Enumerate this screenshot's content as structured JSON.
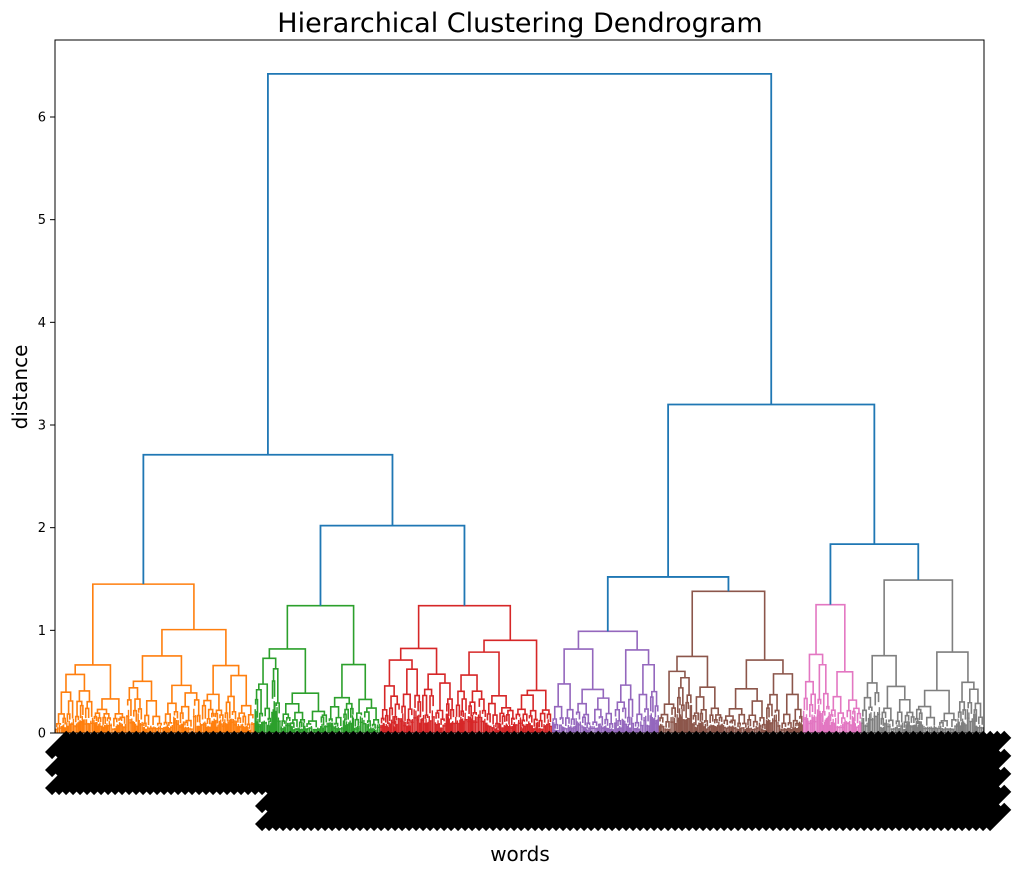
{
  "chart_data": {
    "type": "dendrogram",
    "title": "Hierarchical Clustering Dendrogram",
    "xlabel": "words",
    "ylabel": "distance",
    "ylim": [
      0,
      6.75
    ],
    "yticks": [
      0,
      1,
      2,
      3,
      4,
      5,
      6
    ],
    "grid": false,
    "above_threshold_color": "#1f77b4",
    "x_span": [
      0,
      1
    ],
    "clusters": [
      {
        "color": "#ff7f0e",
        "x_range": [
          0.0,
          0.215
        ],
        "top_height": 1.45
      },
      {
        "color": "#2ca02c",
        "x_range": [
          0.215,
          0.35
        ],
        "top_height": 1.24
      },
      {
        "color": "#d62728",
        "x_range": [
          0.35,
          0.535
        ],
        "top_height": 1.24
      },
      {
        "color": "#9467bd",
        "x_range": [
          0.535,
          0.65
        ],
        "top_height": 0.99
      },
      {
        "color": "#8c564b",
        "x_range": [
          0.65,
          0.805
        ],
        "top_height": 1.38
      },
      {
        "color": "#e377c2",
        "x_range": [
          0.805,
          0.868
        ],
        "top_height": 1.25
      },
      {
        "color": "#7f7f7f",
        "x_range": [
          0.868,
          1.0
        ],
        "top_height": 1.49
      }
    ],
    "upper_merges": [
      {
        "height": 6.42,
        "left": 0.219,
        "right": 0.756
      },
      {
        "height": 2.71,
        "left": 0.078,
        "right": 0.359
      },
      {
        "height": 2.02,
        "left": 0.297,
        "right": 0.424
      },
      {
        "height": 3.2,
        "left": 0.641,
        "right": 0.876
      },
      {
        "height": 1.52,
        "left": 0.595,
        "right": 0.685
      },
      {
        "height": 1.84,
        "left": 0.817,
        "right": 0.934
      }
    ]
  }
}
